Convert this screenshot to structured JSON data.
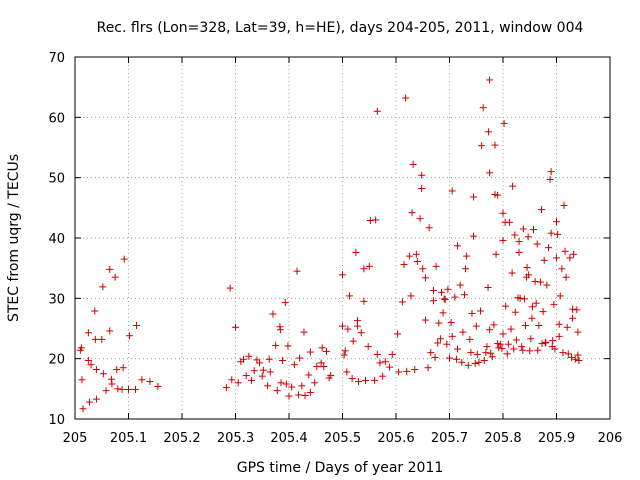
{
  "chart_data": {
    "type": "scatter",
    "title": "Rec. flrs (Lon=328, Lat=39, h=HE), days 204-205, 2011, window 004",
    "xlabel": "GPS time / Days of year 2011",
    "ylabel": "STEC from uqrg / TECUs",
    "xlim": [
      205,
      206
    ],
    "ylim": [
      10,
      70
    ],
    "xticks": [
      205,
      205.1,
      205.2,
      205.3,
      205.4,
      205.5,
      205.6,
      205.7,
      205.8,
      205.9,
      206
    ],
    "xtick_labels": [
      "205",
      "205.1",
      "205.2",
      "205.3",
      "205.4",
      "205.5",
      "205.6",
      "205.7",
      "205.8",
      "205.9",
      "206"
    ],
    "yticks": [
      10,
      20,
      30,
      40,
      50,
      60,
      70
    ],
    "ytick_labels": [
      "10",
      "20",
      "30",
      "40",
      "50",
      "60",
      "70"
    ],
    "grid": true,
    "marker": "+",
    "color": "#cc0000",
    "series": [
      {
        "name": "STEC",
        "points": [
          [
            205.01,
            21.4
          ],
          [
            205.012,
            21.8
          ],
          [
            205.013,
            16.5
          ],
          [
            205.015,
            11.7
          ],
          [
            205.025,
            24.3
          ],
          [
            205.025,
            19.7
          ],
          [
            205.027,
            12.8
          ],
          [
            205.03,
            19.0
          ],
          [
            205.037,
            27.9
          ],
          [
            205.038,
            23.2
          ],
          [
            205.04,
            13.3
          ],
          [
            205.04,
            18.2
          ],
          [
            205.05,
            23.2
          ],
          [
            205.052,
            31.9
          ],
          [
            205.053,
            17.5
          ],
          [
            205.058,
            14.7
          ],
          [
            205.065,
            34.8
          ],
          [
            205.065,
            24.6
          ],
          [
            205.068,
            16.6
          ],
          [
            205.069,
            15.8
          ],
          [
            205.075,
            33.5
          ],
          [
            205.078,
            18.2
          ],
          [
            205.08,
            15.0
          ],
          [
            205.088,
            14.9
          ],
          [
            205.09,
            18.5
          ],
          [
            205.092,
            36.5
          ],
          [
            205.1,
            14.9
          ],
          [
            205.102,
            23.8
          ],
          [
            205.113,
            14.9
          ],
          [
            205.115,
            25.5
          ],
          [
            205.125,
            16.5
          ],
          [
            205.14,
            16.2
          ],
          [
            205.155,
            15.4
          ],
          [
            205.283,
            15.2
          ],
          [
            205.29,
            31.7
          ],
          [
            205.293,
            16.5
          ],
          [
            205.3,
            25.2
          ],
          [
            205.305,
            16.0
          ],
          [
            205.31,
            19.5
          ],
          [
            205.315,
            19.9
          ],
          [
            205.32,
            17.2
          ],
          [
            205.325,
            20.4
          ],
          [
            205.33,
            16.4
          ],
          [
            205.335,
            18.0
          ],
          [
            205.34,
            19.8
          ],
          [
            205.345,
            19.3
          ],
          [
            205.35,
            17.1
          ],
          [
            205.352,
            18.1
          ],
          [
            205.36,
            15.5
          ],
          [
            205.363,
            19.9
          ],
          [
            205.365,
            17.8
          ],
          [
            205.37,
            27.4
          ],
          [
            205.375,
            22.2
          ],
          [
            205.378,
            14.7
          ],
          [
            205.383,
            25.3
          ],
          [
            205.384,
            24.8
          ],
          [
            205.385,
            16.0
          ],
          [
            205.388,
            19.7
          ],
          [
            205.393,
            29.3
          ],
          [
            205.395,
            15.8
          ],
          [
            205.398,
            22.1
          ],
          [
            205.4,
            13.8
          ],
          [
            205.405,
            15.3
          ],
          [
            205.41,
            19.0
          ],
          [
            205.415,
            34.5
          ],
          [
            205.418,
            14.0
          ],
          [
            205.42,
            20.1
          ],
          [
            205.424,
            15.5
          ],
          [
            205.428,
            24.4
          ],
          [
            205.43,
            13.9
          ],
          [
            205.437,
            17.3
          ],
          [
            205.44,
            21.1
          ],
          [
            205.44,
            14.4
          ],
          [
            205.448,
            16.0
          ],
          [
            205.452,
            18.7
          ],
          [
            205.46,
            19.3
          ],
          [
            205.462,
            21.8
          ],
          [
            205.465,
            18.7
          ],
          [
            205.47,
            21.2
          ],
          [
            205.475,
            16.8
          ],
          [
            205.478,
            17.2
          ],
          [
            205.5,
            33.9
          ],
          [
            205.5,
            25.4
          ],
          [
            205.503,
            20.6
          ],
          [
            205.505,
            21.3
          ],
          [
            205.508,
            17.8
          ],
          [
            205.51,
            24.9
          ],
          [
            205.513,
            30.4
          ],
          [
            205.518,
            16.7
          ],
          [
            205.52,
            22.9
          ],
          [
            205.525,
            37.6
          ],
          [
            205.528,
            25.4
          ],
          [
            205.528,
            26.3
          ],
          [
            205.53,
            16.2
          ],
          [
            205.535,
            24.3
          ],
          [
            205.54,
            29.5
          ],
          [
            205.54,
            34.9
          ],
          [
            205.543,
            16.4
          ],
          [
            205.548,
            22.0
          ],
          [
            205.55,
            35.3
          ],
          [
            205.552,
            42.9
          ],
          [
            205.56,
            16.4
          ],
          [
            205.562,
            43.0
          ],
          [
            205.565,
            61.0
          ],
          [
            205.565,
            20.7
          ],
          [
            205.57,
            19.3
          ],
          [
            205.575,
            17.1
          ],
          [
            205.58,
            19.5
          ],
          [
            205.588,
            18.6
          ],
          [
            205.593,
            20.7
          ],
          [
            205.603,
            24.1
          ],
          [
            205.605,
            17.8
          ],
          [
            205.612,
            29.4
          ],
          [
            205.615,
            35.6
          ],
          [
            205.618,
            63.2
          ],
          [
            205.62,
            17.9
          ],
          [
            205.625,
            37.0
          ],
          [
            205.628,
            30.4
          ],
          [
            205.63,
            44.2
          ],
          [
            205.632,
            52.2
          ],
          [
            205.635,
            18.2
          ],
          [
            205.638,
            37.3
          ],
          [
            205.64,
            36.1
          ],
          [
            205.645,
            43.2
          ],
          [
            205.648,
            50.4
          ],
          [
            205.648,
            48.2
          ],
          [
            205.65,
            34.9
          ],
          [
            205.655,
            33.4
          ],
          [
            205.655,
            26.4
          ],
          [
            205.66,
            18.5
          ],
          [
            205.662,
            41.7
          ],
          [
            205.665,
            21.0
          ],
          [
            205.67,
            31.3
          ],
          [
            205.67,
            29.6
          ],
          [
            205.673,
            20.2
          ],
          [
            205.675,
            35.3
          ],
          [
            205.678,
            22.6
          ],
          [
            205.68,
            25.9
          ],
          [
            205.683,
            23.3
          ],
          [
            205.685,
            31.0
          ],
          [
            205.688,
            27.6
          ],
          [
            205.69,
            29.9
          ],
          [
            205.692,
            29.8
          ],
          [
            205.695,
            22.4
          ],
          [
            205.697,
            31.5
          ],
          [
            205.7,
            20.1
          ],
          [
            205.703,
            26.0
          ],
          [
            205.705,
            23.7
          ],
          [
            205.705,
            47.8
          ],
          [
            205.71,
            30.2
          ],
          [
            205.713,
            19.9
          ],
          [
            205.715,
            21.6
          ],
          [
            205.715,
            38.7
          ],
          [
            205.72,
            32.2
          ],
          [
            205.723,
            19.4
          ],
          [
            205.725,
            24.4
          ],
          [
            205.728,
            30.6
          ],
          [
            205.73,
            34.9
          ],
          [
            205.732,
            37.0
          ],
          [
            205.735,
            18.9
          ],
          [
            205.738,
            23.2
          ],
          [
            205.74,
            21.0
          ],
          [
            205.742,
            27.5
          ],
          [
            205.745,
            40.3
          ],
          [
            205.745,
            46.8
          ],
          [
            205.748,
            19.2
          ],
          [
            205.75,
            25.4
          ],
          [
            205.752,
            20.7
          ],
          [
            205.755,
            19.4
          ],
          [
            205.758,
            27.9
          ],
          [
            205.76,
            55.3
          ],
          [
            205.763,
            61.6
          ],
          [
            205.765,
            19.7
          ],
          [
            205.768,
            21.0
          ],
          [
            205.77,
            22.0
          ],
          [
            205.772,
            31.8
          ],
          [
            205.773,
            57.6
          ],
          [
            205.775,
            66.2
          ],
          [
            205.775,
            50.8
          ],
          [
            205.775,
            24.8
          ],
          [
            205.777,
            20.9
          ],
          [
            205.78,
            20.3
          ],
          [
            205.783,
            25.6
          ],
          [
            205.785,
            47.2
          ],
          [
            205.785,
            55.4
          ],
          [
            205.787,
            37.3
          ],
          [
            205.79,
            22.5
          ],
          [
            205.79,
            47.1
          ],
          [
            205.792,
            21.8
          ],
          [
            205.795,
            22.4
          ],
          [
            205.798,
            21.7
          ],
          [
            205.8,
            39.6
          ],
          [
            205.8,
            44.1
          ],
          [
            205.8,
            24.1
          ],
          [
            205.802,
            59.0
          ],
          [
            205.804,
            42.6
          ],
          [
            205.805,
            28.7
          ],
          [
            205.808,
            20.8
          ],
          [
            205.81,
            22.4
          ],
          [
            205.812,
            42.6
          ],
          [
            205.815,
            24.9
          ],
          [
            205.817,
            34.2
          ],
          [
            205.818,
            48.6
          ],
          [
            205.82,
            21.6
          ],
          [
            205.822,
            40.5
          ],
          [
            205.823,
            27.7
          ],
          [
            205.825,
            23.1
          ],
          [
            205.828,
            30.1
          ],
          [
            205.83,
            39.4
          ],
          [
            205.83,
            37.6
          ],
          [
            205.832,
            30.0
          ],
          [
            205.835,
            22.0
          ],
          [
            205.837,
            21.4
          ],
          [
            205.838,
            41.5
          ],
          [
            205.84,
            29.9
          ],
          [
            205.842,
            25.5
          ],
          [
            205.844,
            33.5
          ],
          [
            205.845,
            35.1
          ],
          [
            205.847,
            40.2
          ],
          [
            205.848,
            33.9
          ],
          [
            205.85,
            21.3
          ],
          [
            205.852,
            23.3
          ],
          [
            205.854,
            26.7
          ],
          [
            205.855,
            28.6
          ],
          [
            205.857,
            41.4
          ],
          [
            205.86,
            32.8
          ],
          [
            205.862,
            29.2
          ],
          [
            205.864,
            39.0
          ],
          [
            205.865,
            21.4
          ],
          [
            205.867,
            25.5
          ],
          [
            205.87,
            32.7
          ],
          [
            205.872,
            44.7
          ],
          [
            205.873,
            22.5
          ],
          [
            205.875,
            27.8
          ],
          [
            205.877,
            36.3
          ],
          [
            205.879,
            22.6
          ],
          [
            205.88,
            22.7
          ],
          [
            205.882,
            32.2
          ],
          [
            205.885,
            38.4
          ],
          [
            205.888,
            49.7
          ],
          [
            205.89,
            51.0
          ],
          [
            205.89,
            40.8
          ],
          [
            205.892,
            22.0
          ],
          [
            205.893,
            23.0
          ],
          [
            205.895,
            29.0
          ],
          [
            205.897,
            21.6
          ],
          [
            205.9,
            42.7
          ],
          [
            205.9,
            36.7
          ],
          [
            205.902,
            40.6
          ],
          [
            205.905,
            23.7
          ],
          [
            205.905,
            25.7
          ],
          [
            205.907,
            30.4
          ],
          [
            205.91,
            34.9
          ],
          [
            205.912,
            21.0
          ],
          [
            205.914,
            45.4
          ],
          [
            205.916,
            37.8
          ],
          [
            205.918,
            33.5
          ],
          [
            205.92,
            25.2
          ],
          [
            205.922,
            20.8
          ],
          [
            205.925,
            36.7
          ],
          [
            205.928,
            20.2
          ],
          [
            205.93,
            26.7
          ],
          [
            205.93,
            28.2
          ],
          [
            205.932,
            37.3
          ],
          [
            205.935,
            19.9
          ],
          [
            205.938,
            28.1
          ],
          [
            205.94,
            20.6
          ],
          [
            205.94,
            24.4
          ],
          [
            205.942,
            19.7
          ]
        ]
      }
    ]
  }
}
